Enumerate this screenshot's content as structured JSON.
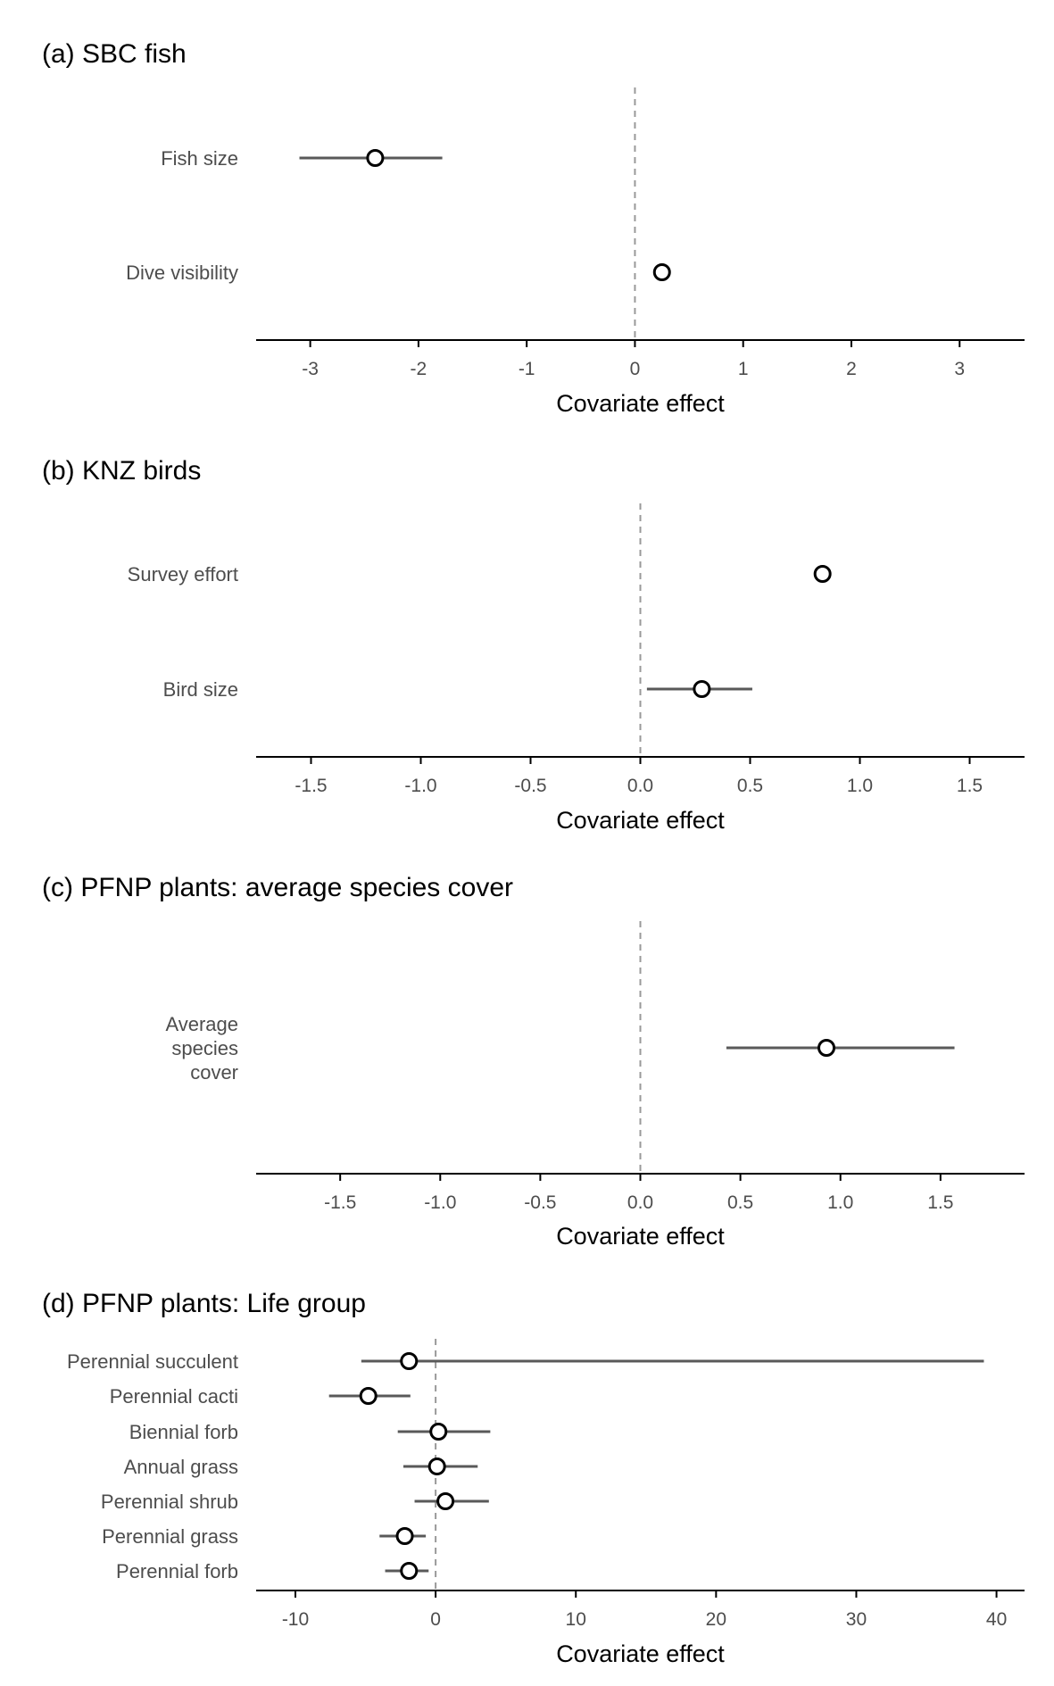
{
  "chart_data": [
    {
      "type": "scatter",
      "panel": "a",
      "title": "(a) SBC fish",
      "xlabel": "Covariate effect",
      "xlim": [
        -3.5,
        3.6
      ],
      "ticks": [
        -3,
        -2,
        -1,
        0,
        1,
        2,
        3
      ],
      "tick_labels": [
        "-3",
        "-2",
        "-1",
        "0",
        "1",
        "2",
        "3"
      ],
      "categories": [
        "Fish size",
        "Dive visibility"
      ],
      "values": [
        -2.4,
        0.25
      ],
      "lower": [
        -3.1,
        0.25
      ],
      "upper": [
        -1.78,
        0.25
      ],
      "reference_line": 0
    },
    {
      "type": "scatter",
      "panel": "b",
      "title": "(b) KNZ birds",
      "xlabel": "Covariate effect",
      "xlim": [
        -1.75,
        1.75
      ],
      "ticks": [
        -1.5,
        -1.0,
        -0.5,
        0.0,
        0.5,
        1.0,
        1.5
      ],
      "tick_labels": [
        "-1.5",
        "-1.0",
        "-0.5",
        "0.0",
        "0.5",
        "1.0",
        "1.5"
      ],
      "categories": [
        "Survey effort",
        "Bird size"
      ],
      "values": [
        0.83,
        0.28
      ],
      "lower": [
        0.83,
        0.03
      ],
      "upper": [
        0.83,
        0.51
      ],
      "reference_line": 0
    },
    {
      "type": "scatter",
      "panel": "c",
      "title": "(c) PFNP plants: average species cover",
      "xlabel": "Covariate effect",
      "xlim": [
        -1.92,
        1.92
      ],
      "ticks": [
        -1.5,
        -1.0,
        -0.5,
        0.0,
        0.5,
        1.0,
        1.5
      ],
      "tick_labels": [
        "-1.5",
        "-1.0",
        "-0.5",
        "0.0",
        "0.5",
        "1.0",
        "1.5"
      ],
      "categories": [
        [
          "Average",
          "species",
          "cover"
        ]
      ],
      "values": [
        0.93
      ],
      "lower": [
        0.43
      ],
      "upper": [
        1.57
      ],
      "reference_line": 0
    },
    {
      "type": "scatter",
      "panel": "d",
      "title": "(d) PFNP plants: Life group",
      "xlabel": "Covariate effect",
      "xlim": [
        -12.8,
        42.0
      ],
      "ticks": [
        -10,
        0,
        10,
        20,
        30,
        40
      ],
      "tick_labels": [
        "-10",
        "0",
        "10",
        "20",
        "30",
        "40"
      ],
      "categories": [
        "Perennial succulent",
        "Perennial cacti",
        "Biennial forb",
        "Annual grass",
        "Perennial shrub",
        "Perennial grass",
        "Perennial forb"
      ],
      "values": [
        -1.9,
        -4.8,
        0.2,
        0.1,
        0.7,
        -2.2,
        -1.9
      ],
      "lower": [
        -5.3,
        -7.6,
        -2.7,
        -2.3,
        -1.5,
        -4.0,
        -3.6
      ],
      "upper": [
        39.1,
        -1.8,
        3.9,
        3.0,
        3.8,
        -0.7,
        -0.5
      ],
      "reference_line": 0
    }
  ]
}
